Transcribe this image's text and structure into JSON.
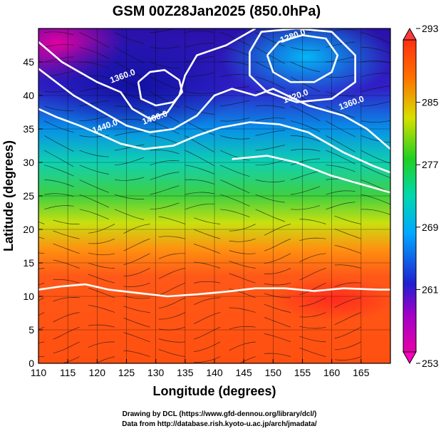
{
  "chart_data": {
    "type": "heatmap",
    "title": "GSM 00Z28Jan2025 (850.0hPa)",
    "xlabel": "Longitude (degrees)",
    "ylabel": "Latitude  (degrees)",
    "xlim": [
      110,
      170
    ],
    "ylim": [
      0,
      50
    ],
    "x_ticks": [
      110,
      115,
      120,
      125,
      130,
      135,
      140,
      145,
      150,
      155,
      160,
      165
    ],
    "y_ticks": [
      0,
      5,
      10,
      15,
      20,
      25,
      30,
      35,
      40,
      45
    ],
    "colorbar": {
      "ticks": [
        253,
        261,
        269,
        277,
        285,
        293
      ],
      "range": [
        253,
        293
      ],
      "colors": [
        "#e0009a",
        "#2020c8",
        "#00b4ff",
        "#20d020",
        "#f0e000",
        "#ff6000",
        "#ff3010"
      ]
    },
    "temperature_field_note": "air temperature (K), increasing southward",
    "contour_labels": [
      {
        "text": "1280.0",
        "lon": 153.5,
        "lat": 48.5
      },
      {
        "text": "1360.0",
        "lon": 124.5,
        "lat": 42.5
      },
      {
        "text": "1400.0",
        "lon": 130.0,
        "lat": 36.3
      },
      {
        "text": "1440.0",
        "lon": 121.5,
        "lat": 35.0
      },
      {
        "text": "1320.0",
        "lon": 154.0,
        "lat": 39.5
      },
      {
        "text": "1360.0",
        "lon": 163.5,
        "lat": 38.5
      }
    ],
    "height_contours": [
      {
        "name": "1360",
        "points": [
          [
            110,
            48
          ],
          [
            114,
            45
          ],
          [
            120,
            42
          ],
          [
            124,
            40.5
          ],
          [
            126,
            38
          ],
          [
            129,
            36.5
          ],
          [
            132,
            37.5
          ],
          [
            134,
            40
          ],
          [
            135,
            43
          ],
          [
            137,
            46
          ],
          [
            142,
            47.5
          ],
          [
            145,
            49
          ],
          [
            147,
            50
          ]
        ]
      },
      {
        "name": "1400",
        "points": [
          [
            110,
            44
          ],
          [
            116,
            40
          ],
          [
            121,
            37.5
          ],
          [
            125,
            35.5
          ],
          [
            129,
            34.5
          ],
          [
            133,
            35
          ],
          [
            137,
            37
          ],
          [
            140,
            40
          ],
          [
            143,
            41
          ],
          [
            147,
            40
          ],
          [
            150,
            41
          ],
          [
            156,
            38.5
          ],
          [
            162,
            37
          ],
          [
            166,
            35
          ],
          [
            170,
            32
          ]
        ]
      },
      {
        "name": "1440",
        "points": [
          [
            110,
            38
          ],
          [
            113,
            36.8
          ],
          [
            117,
            35.5
          ],
          [
            121,
            34
          ],
          [
            124,
            32.8
          ],
          [
            128,
            32
          ],
          [
            133,
            32.5
          ],
          [
            137,
            34
          ],
          [
            141,
            35.2
          ],
          [
            146,
            36
          ],
          [
            151,
            35.7
          ],
          [
            156,
            34.5
          ],
          [
            162,
            31.5
          ],
          [
            167,
            29.5
          ],
          [
            170,
            28.5
          ]
        ]
      },
      {
        "name": "1480",
        "points": [
          [
            143,
            30.5
          ],
          [
            149,
            31
          ],
          [
            154,
            30
          ],
          [
            160,
            28
          ],
          [
            166,
            26.5
          ],
          [
            170,
            25.5
          ]
        ]
      },
      {
        "name": "1520",
        "points": [
          [
            110,
            11
          ],
          [
            114,
            11.5
          ],
          [
            118,
            11.8
          ],
          [
            122,
            11
          ],
          [
            127,
            10.5
          ],
          [
            132,
            10
          ],
          [
            137,
            10.3
          ],
          [
            142,
            10.7
          ],
          [
            147,
            11.2
          ],
          [
            152,
            11.2
          ],
          [
            157,
            10.8
          ],
          [
            162,
            11.2
          ],
          [
            168,
            11
          ],
          [
            170,
            11
          ]
        ]
      },
      {
        "name": "1320-inner",
        "points": [
          [
            127,
            42
          ],
          [
            129,
            43.5
          ],
          [
            131.5,
            43.8
          ],
          [
            134,
            42.3
          ],
          [
            134.5,
            40.5
          ],
          [
            133,
            39
          ],
          [
            130,
            38.5
          ],
          [
            127.5,
            39.5
          ],
          [
            127,
            42
          ]
        ]
      },
      {
        "name": "1280-low",
        "points": [
          [
            149,
            46
          ],
          [
            151,
            48
          ],
          [
            155,
            49
          ],
          [
            159,
            48.5
          ],
          [
            161,
            46
          ],
          [
            160,
            43.5
          ],
          [
            157,
            42
          ],
          [
            153,
            42
          ],
          [
            150,
            43.5
          ],
          [
            149,
            46
          ]
        ]
      },
      {
        "name": "1320-low",
        "points": [
          [
            146,
            46.5
          ],
          [
            148,
            49.5
          ],
          [
            154,
            50
          ],
          [
            160,
            49.5
          ],
          [
            164,
            46
          ],
          [
            164,
            42
          ],
          [
            160,
            39.5
          ],
          [
            154,
            39
          ],
          [
            149,
            40.5
          ],
          [
            146,
            43
          ],
          [
            146,
            46.5
          ]
        ]
      }
    ]
  },
  "credits": {
    "line1": "Drawing by DCL (https://www.gfd-dennou.org/library/dcl/)",
    "line2": "Data from http://database.rish.kyoto-u.ac.jp/arch/jmadata/"
  }
}
